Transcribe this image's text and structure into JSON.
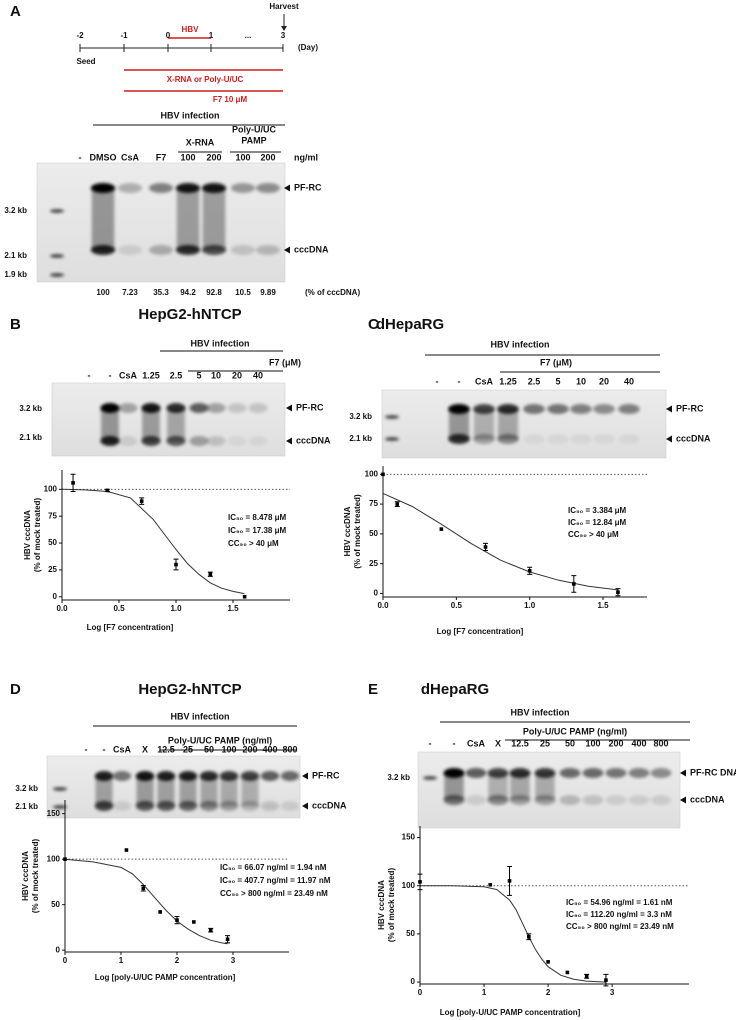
{
  "panel_labels": [
    "A",
    "B",
    "C",
    "D",
    "E"
  ],
  "timeline": {
    "harvest": "Harvest",
    "hbv": "HBV",
    "days": [
      "-2",
      "-1",
      "0",
      "1",
      "...",
      "3"
    ],
    "unit": "(Day)",
    "seed": "Seed",
    "treatment": "X-RNA or Poly-U/UC",
    "f7": "F7 10 μM"
  },
  "blots": [
    {
      "group": "HBV infection",
      "subgroups": [
        [
          "X-RNA"
        ],
        [
          "Poly-U/UC",
          "PAMP"
        ]
      ],
      "lanes": [
        "-",
        "DMSO",
        "CsA",
        "F7",
        "100",
        "200",
        "100",
        "200"
      ],
      "unit": "ng/ml",
      "markers": [
        "3.2 kb",
        "2.1 kb",
        "1.9 kb"
      ],
      "bands": [
        "PF-RC",
        "cccDNA"
      ],
      "quant": [
        100,
        7.23,
        35.3,
        94.2,
        92.8,
        10.5,
        9.89
      ],
      "quant_unit": "(% of cccDNA)"
    },
    {
      "title": "HepG2-hNTCP",
      "group": "HBV infection",
      "subgroups": [
        [
          "F7 (μM)"
        ]
      ],
      "lanes": [
        "-",
        "-",
        "CsA",
        "1.25",
        "2.5",
        "5",
        "10",
        "20",
        "40"
      ],
      "markers": [
        "3.2 kb",
        "2.1 kb"
      ],
      "bands": [
        "PF-RC",
        "cccDNA"
      ]
    },
    {
      "title": "dHepaRG",
      "group": "HBV infection",
      "subgroups": [
        [
          "F7 (μM)"
        ]
      ],
      "lanes": [
        "-",
        "-",
        "CsA",
        "1.25",
        "2.5",
        "5",
        "10",
        "20",
        "40"
      ],
      "markers": [
        "3.2 kb",
        "2.1 kb"
      ],
      "bands": [
        "PF-RC",
        "cccDNA"
      ]
    },
    {
      "title": "HepG2-hNTCP",
      "group": "HBV infection",
      "subgroups": [
        [
          "Poly-U/UC  PAMP (ng/ml)"
        ]
      ],
      "lanes": [
        "-",
        "-",
        "CsA",
        "X",
        "12.5",
        "25",
        "50",
        "100",
        "200",
        "400",
        "800"
      ],
      "markers": [
        "3.2 kb",
        "2.1 kb"
      ],
      "bands": [
        "PF-RC",
        "cccDNA"
      ]
    },
    {
      "title": "dHepaRG",
      "group": "HBV infection",
      "subgroups": [
        [
          "Poly-U/UC  PAMP (ng/ml)"
        ]
      ],
      "lanes": [
        "-",
        "-",
        "CsA",
        "X",
        "12.5",
        "25",
        "50",
        "100",
        "200",
        "400",
        "800"
      ],
      "markers": [
        "3.2 kb"
      ],
      "bands": [
        "PF-RC DNA",
        "cccDNA"
      ]
    }
  ],
  "chart_data": [
    {
      "type": "scatter",
      "xlabel": "Log [F7 concentration]",
      "ylabel": [
        "HBV cccDNA",
        "(% of mock treated)"
      ],
      "xlim": [
        0,
        2
      ],
      "ylim": [
        -3,
        118
      ],
      "xticks": [
        {
          "value": 0,
          "label": "0.0"
        },
        0.5,
        {
          "value": 1,
          "label": "1.0"
        },
        1.5
      ],
      "yticks": [
        0,
        25,
        50,
        75,
        100
      ],
      "hline": 100,
      "series": [
        {
          "color": "#000000",
          "x": [
            0.097,
            0.398,
            0.699,
            1.0,
            1.301,
            1.602
          ],
          "values": [
            106,
            99,
            89,
            30,
            21,
            0
          ],
          "errors": [
            8,
            1,
            3,
            5,
            2,
            null
          ]
        }
      ],
      "fit": {
        "x": [
          0,
          0.2,
          0.4,
          0.6,
          0.8,
          0.9,
          1.0,
          1.1,
          1.2,
          1.3,
          1.4,
          1.5,
          1.6
        ],
        "values": [
          100,
          99.5,
          98,
          92,
          72,
          58,
          44,
          31,
          21,
          13,
          8,
          5,
          3
        ]
      },
      "annotations": [
        "IC₅₀ = 8.478 μM",
        "IC₉₀ = 17.38 μM",
        "CC₅₀ > 40 μM"
      ]
    },
    {
      "type": "scatter",
      "xlabel": "Log [F7 concentration]",
      "ylabel": [
        "HBV cccDNA",
        "(% of mock treated)"
      ],
      "xlim": [
        0,
        1.8
      ],
      "ylim": [
        -3,
        107
      ],
      "xticks": [
        {
          "value": 0,
          "label": "0.0"
        },
        0.5,
        {
          "value": 1,
          "label": "1.0"
        },
        1.5
      ],
      "yticks": [
        0,
        25,
        50,
        75,
        100
      ],
      "hline": 100,
      "series": [
        {
          "color": "#000000",
          "x": [
            0,
            0.097,
            0.398,
            0.699,
            1.0,
            1.301,
            1.602
          ],
          "values": [
            100,
            75,
            54,
            39,
            19,
            8,
            1
          ],
          "errors": [
            null,
            2,
            null,
            3,
            3,
            7,
            3
          ]
        }
      ],
      "fit": {
        "x": [
          0,
          0.2,
          0.4,
          0.6,
          0.8,
          1.0,
          1.2,
          1.4,
          1.6
        ],
        "values": [
          84,
          73,
          58,
          42,
          28,
          18,
          11,
          6,
          3
        ]
      },
      "annotations": [
        "IC₅₀ = 3.384 μM",
        "IC₉₀ = 12.84 μM",
        "CC₅₀ > 40 μM"
      ]
    },
    {
      "type": "scatter",
      "xlabel": "Log [poly-U/UC PAMP concentration]",
      "ylabel": [
        "HBV cccDNA",
        "(% of mock treated)"
      ],
      "xlim": [
        0,
        4
      ],
      "ylim": [
        -2,
        165
      ],
      "xticks": [
        0,
        1,
        2,
        3
      ],
      "yticks": [
        0,
        50,
        100,
        150
      ],
      "hline": 100,
      "series": [
        {
          "color": "#000000",
          "x": [
            0,
            1.097,
            1.398,
            1.699,
            2.0,
            2.301,
            2.602,
            2.903
          ],
          "values": [
            100,
            110,
            68,
            42,
            33,
            31,
            22,
            12
          ],
          "errors": [
            null,
            null,
            3,
            null,
            4,
            null,
            2,
            4
          ]
        }
      ],
      "fit": {
        "x": [
          0,
          0.5,
          1.0,
          1.2,
          1.4,
          1.6,
          1.8,
          2.0,
          2.2,
          2.4,
          2.6,
          2.8,
          2.9
        ],
        "values": [
          100,
          97,
          91,
          84,
          72,
          58,
          44,
          32,
          23,
          16,
          11,
          8,
          7
        ]
      },
      "annotations": [
        "IC₅₀ = 66.07 ng/ml = 1.94 nM",
        "IC₉₀ = 407.7 ng/ml = 11.97 nM",
        "CC₅₀ > 800 ng/ml = 23.49 nM"
      ]
    },
    {
      "type": "scatter",
      "xlabel": "Log [poly-U/UC PAMP concentration]",
      "ylabel": [
        "HBV cccDNA",
        "(% of mock treated)"
      ],
      "xlim": [
        0,
        4.2
      ],
      "ylim": [
        -2,
        162
      ],
      "xticks": [
        0,
        1,
        2,
        3
      ],
      "yticks": [
        0,
        50,
        100,
        150
      ],
      "hline": 100,
      "series": [
        {
          "color": "#000000",
          "x": [
            0,
            1.097,
            1.398,
            1.699,
            2.0,
            2.301,
            2.602,
            2.903
          ],
          "values": [
            104,
            101,
            105,
            47,
            21,
            10,
            6,
            2
          ],
          "errors": [
            8,
            null,
            15,
            3,
            null,
            null,
            2,
            6
          ]
        }
      ],
      "fit": {
        "x": [
          0,
          0.5,
          1.0,
          1.2,
          1.4,
          1.5,
          1.6,
          1.7,
          1.8,
          1.9,
          2.0,
          2.2,
          2.4,
          2.6,
          2.9
        ],
        "values": [
          100,
          100,
          99,
          96,
          85,
          75,
          61,
          47,
          34,
          24,
          16,
          7,
          3,
          1,
          0
        ]
      },
      "annotations": [
        "IC₅₀ = 54.96 ng/ml = 1.61 nM",
        "IC₉₀ = 112.20 ng/ml = 3.3 nM",
        "CC₅₀ > 800 ng/ml = 23.49 nM"
      ]
    }
  ]
}
